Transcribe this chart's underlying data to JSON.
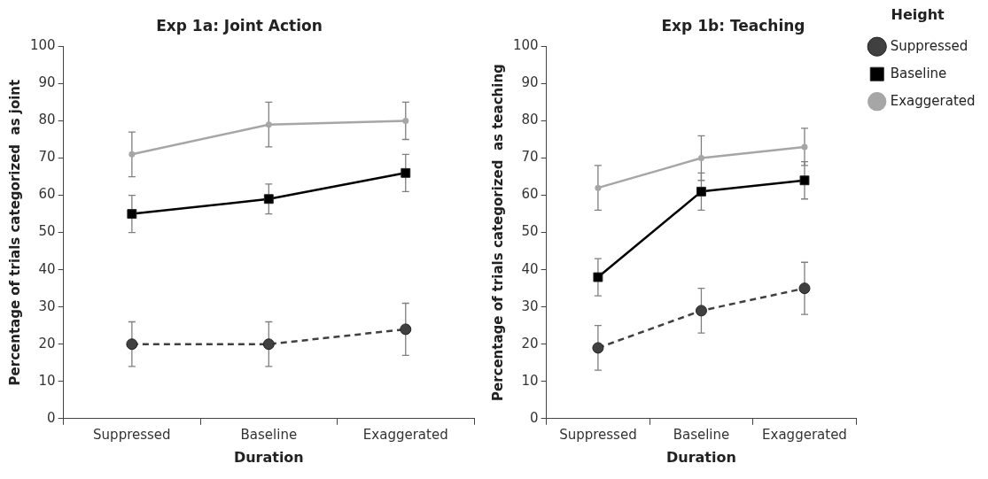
{
  "chart_data": [
    {
      "type": "line",
      "title": "Exp 1a: Joint Action",
      "xlabel": "Duration",
      "ylabel": "Percentage of trials categorized  as joint",
      "categories": [
        "Suppressed",
        "Baseline",
        "Exaggerated"
      ],
      "ylim": [
        0,
        100
      ],
      "yticks": [
        0,
        10,
        20,
        30,
        40,
        50,
        60,
        70,
        80,
        90,
        100
      ],
      "grid": false,
      "legend": false,
      "series": [
        {
          "color": "#404040",
          "values": [
            20,
            20,
            24
          ],
          "errors": [
            [
              14,
              26
            ],
            [
              14,
              26
            ],
            [
              17,
              31
            ]
          ],
          "marker": "circle",
          "line_style": "dashed"
        },
        {
          "color": "#000000",
          "values": [
            55,
            59,
            66
          ],
          "errors": [
            [
              50,
              60
            ],
            [
              55,
              63
            ],
            [
              61,
              71
            ]
          ],
          "marker": "square",
          "line_style": "solid"
        },
        {
          "color": "#a6a6a6",
          "values": [
            71,
            79,
            80
          ],
          "errors": [
            [
              65,
              77
            ],
            [
              73,
              85
            ],
            [
              75,
              85
            ]
          ],
          "marker": "circle",
          "line_style": "solid"
        }
      ]
    },
    {
      "type": "line",
      "title": "Exp 1b: Teaching",
      "xlabel": "Duration",
      "ylabel": "Percentage of trials categorized  as teaching",
      "legend_title": "Height",
      "categories": [
        "Suppressed",
        "Baseline",
        "Exaggerated"
      ],
      "ylim": [
        0,
        100
      ],
      "yticks": [
        0,
        10,
        20,
        30,
        40,
        50,
        60,
        70,
        80,
        90,
        100
      ],
      "grid": false,
      "legend": "right",
      "series": [
        {
          "name": "Suppressed",
          "color": "#404040",
          "values": [
            19,
            29,
            35
          ],
          "errors": [
            [
              13,
              25
            ],
            [
              23,
              35
            ],
            [
              28,
              42
            ]
          ],
          "marker": "circle",
          "line_style": "dashed"
        },
        {
          "name": "Baseline",
          "color": "#000000",
          "values": [
            38,
            61,
            64
          ],
          "errors": [
            [
              33,
              43
            ],
            [
              56,
              66
            ],
            [
              59,
              69
            ]
          ],
          "marker": "square",
          "line_style": "solid"
        },
        {
          "name": "Exaggerated",
          "color": "#a6a6a6",
          "values": [
            62,
            70,
            73
          ],
          "errors": [
            [
              56,
              68
            ],
            [
              64,
              76
            ],
            [
              68,
              78
            ]
          ],
          "marker": "circle",
          "line_style": "solid"
        }
      ]
    }
  ]
}
